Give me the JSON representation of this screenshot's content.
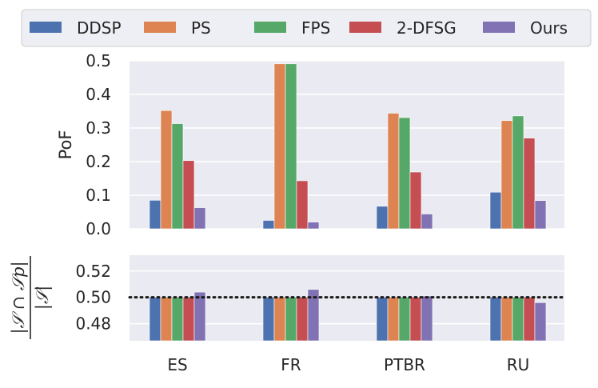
{
  "chart_data": [
    {
      "type": "bar",
      "panel": "top",
      "ylabel": "PoF",
      "ylim": [
        0,
        0.5
      ],
      "yticks": [
        "0.0",
        "0.1",
        "0.2",
        "0.3",
        "0.4",
        "0.5"
      ],
      "categories": [
        "ES",
        "FR",
        "PTBR",
        "RU"
      ],
      "series": [
        {
          "name": "DDSP",
          "color": "#4c72b0",
          "values": [
            0.085,
            0.025,
            0.067,
            0.109
          ]
        },
        {
          "name": "PS",
          "color": "#dd8452",
          "values": [
            0.352,
            0.491,
            0.344,
            0.322
          ]
        },
        {
          "name": "FPS",
          "color": "#55a868",
          "values": [
            0.313,
            0.491,
            0.331,
            0.336
          ]
        },
        {
          "name": "2-DFSG",
          "color": "#c44e52",
          "values": [
            0.203,
            0.143,
            0.169,
            0.27
          ]
        },
        {
          "name": "Ours",
          "color": "#8172b3",
          "values": [
            0.063,
            0.02,
            0.044,
            0.084
          ]
        }
      ],
      "grid": true
    },
    {
      "type": "bar",
      "panel": "bottom",
      "ylabel": "|S ∩ Sp| / |S|",
      "ylabel_numerator": "|𝒮 ∩ 𝒮p|",
      "ylabel_denominator": "|𝒮|",
      "ylim": [
        0.467,
        0.532
      ],
      "yticks": [
        "0.48",
        "0.50",
        "0.52"
      ],
      "categories": [
        "ES",
        "FR",
        "PTBR",
        "RU"
      ],
      "series": [
        {
          "name": "DDSP",
          "color": "#4c72b0",
          "values": [
            0.5,
            0.5,
            0.5,
            0.5
          ]
        },
        {
          "name": "PS",
          "color": "#dd8452",
          "values": [
            0.5,
            0.5,
            0.5,
            0.5
          ]
        },
        {
          "name": "FPS",
          "color": "#55a868",
          "values": [
            0.5,
            0.5,
            0.5,
            0.5
          ]
        },
        {
          "name": "2-DFSG",
          "color": "#c44e52",
          "values": [
            0.5,
            0.5,
            0.5,
            0.5
          ]
        },
        {
          "name": "Ours",
          "color": "#8172b3",
          "values": [
            0.504,
            0.506,
            0.501,
            0.496
          ]
        }
      ],
      "reference_line": {
        "value": 0.5,
        "style": "dotted"
      },
      "grid": true
    }
  ],
  "legend": {
    "position": "top",
    "entries": [
      "DDSP",
      "PS",
      "FPS",
      "2-DFSG",
      "Ours"
    ]
  }
}
